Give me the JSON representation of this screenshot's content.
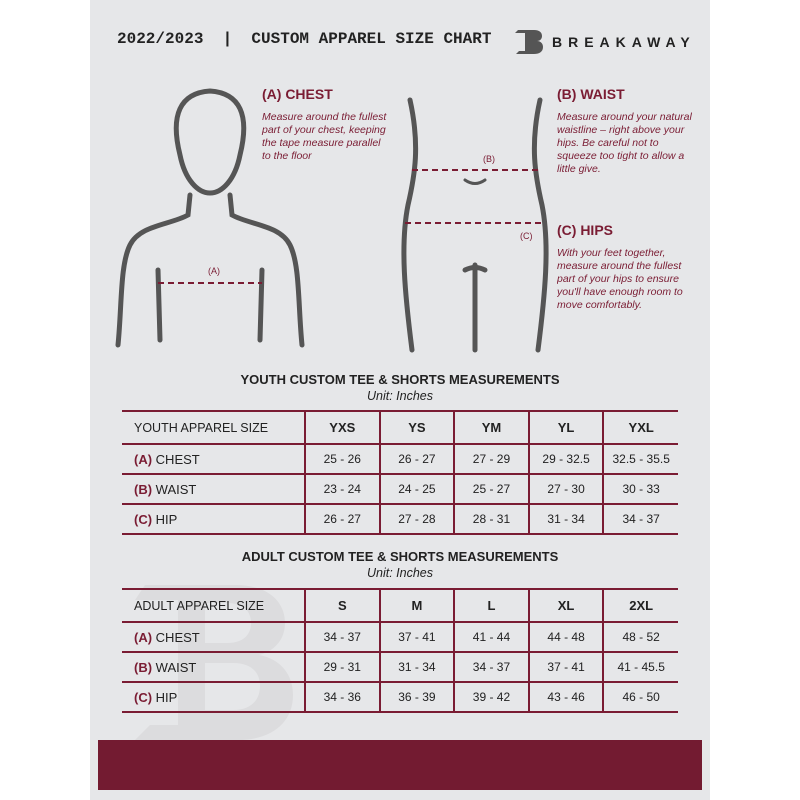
{
  "header": {
    "title": "2022/2023  |  CUSTOM APPAREL SIZE CHART",
    "brand": "BREAKAWAY"
  },
  "measures": {
    "chest": {
      "heading": "(A) CHEST",
      "text": "Measure around the fullest part of your chest, keeping the tape measure parallel to the floor",
      "marker": "(A)"
    },
    "waist": {
      "heading": "(B) WAIST",
      "text": "Measure around your natural waistline – right above your hips. Be careful not to squeeze too tight to allow a little give.",
      "marker": "(B)"
    },
    "hips": {
      "heading": "(C) HIPS",
      "text": "With your feet together, measure around the fullest part of your hips to ensure you'll have enough room to move comfortably.",
      "marker": "(C)"
    }
  },
  "youth": {
    "title": "YOUTH CUSTOM TEE & SHORTS MEASUREMENTS",
    "unit": "Unit: Inches",
    "header": [
      "YOUTH APPAREL SIZE",
      "YXS",
      "YS",
      "YM",
      "YL",
      "YXL"
    ],
    "rows": [
      {
        "letter": "(A)",
        "label": "CHEST",
        "values": [
          "25 - 26",
          "26 - 27",
          "27 - 29",
          "29 - 32.5",
          "32.5 - 35.5"
        ]
      },
      {
        "letter": "(B)",
        "label": "WAIST",
        "values": [
          "23 - 24",
          "24 - 25",
          "25 - 27",
          "27 - 30",
          "30 - 33"
        ]
      },
      {
        "letter": "(C)",
        "label": "HIP",
        "values": [
          "26 - 27",
          "27 - 28",
          "28 - 31",
          "31 - 34",
          "34 - 37"
        ]
      }
    ]
  },
  "adult": {
    "title": "ADULT CUSTOM TEE & SHORTS MEASUREMENTS",
    "unit": "Unit: Inches",
    "header": [
      "ADULT APPAREL SIZE",
      "S",
      "M",
      "L",
      "XL",
      "2XL"
    ],
    "rows": [
      {
        "letter": "(A)",
        "label": "CHEST",
        "values": [
          "34 - 37",
          "37 - 41",
          "41 - 44",
          "44 - 48",
          "48 - 52"
        ]
      },
      {
        "letter": "(B)",
        "label": "WAIST",
        "values": [
          "29 - 31",
          "31 - 34",
          "34 - 37",
          "37 - 41",
          "41 - 45.5"
        ]
      },
      {
        "letter": "(C)",
        "label": "HIP",
        "values": [
          "34 - 36",
          "36 - 39",
          "39 - 42",
          "43 - 46",
          "46 - 50"
        ]
      }
    ]
  },
  "colors": {
    "accent": "#7a1c33",
    "background": "#e6e7e9",
    "footer": "#731b31"
  }
}
